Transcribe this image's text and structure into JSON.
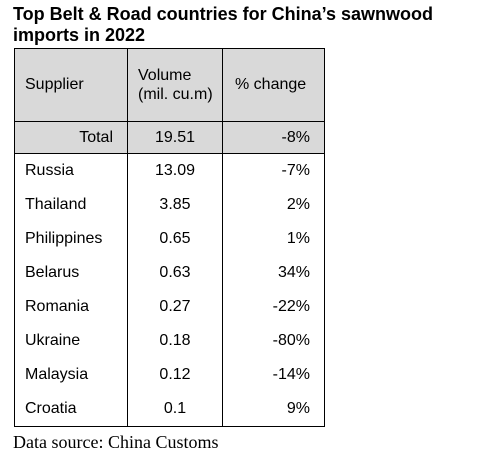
{
  "title": "Top Belt & Road countries for China’s sawnwood imports in 2022",
  "table": {
    "headers": {
      "supplier": "Supplier",
      "volume": "Volume (mil. cu.m)",
      "change": "% change"
    },
    "total": {
      "label": "Total",
      "volume": "19.51",
      "change": "-8%"
    },
    "rows": [
      {
        "supplier": "Russia",
        "volume": "13.09",
        "change": "-7%"
      },
      {
        "supplier": "Thailand",
        "volume": "3.85",
        "change": "2%"
      },
      {
        "supplier": "Philippines",
        "volume": "0.65",
        "change": "1%"
      },
      {
        "supplier": "Belarus",
        "volume": "0.63",
        "change": "34%"
      },
      {
        "supplier": "Romania",
        "volume": "0.27",
        "change": "-22%"
      },
      {
        "supplier": "Ukraine",
        "volume": "0.18",
        "change": "-80%"
      },
      {
        "supplier": "Malaysia",
        "volume": "0.12",
        "change": "-14%"
      },
      {
        "supplier": "Croatia",
        "volume": "0.1",
        "change": "9%"
      }
    ]
  },
  "source": "Data source: China Customs"
}
